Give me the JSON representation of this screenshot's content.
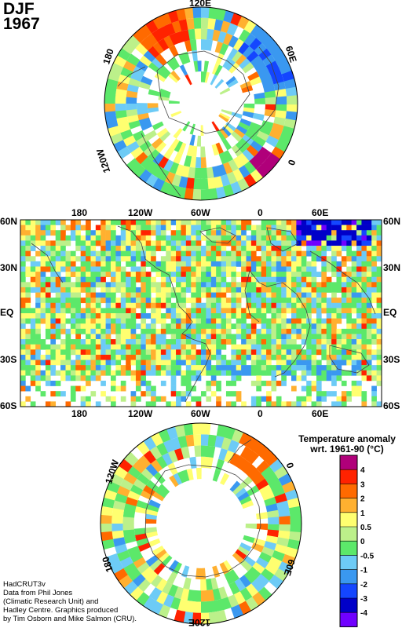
{
  "title": {
    "season": "DJF",
    "year": "1967"
  },
  "north_polar_map": {
    "longitude_labels": {
      "top": "120E",
      "right": "60E",
      "bottom_right": "0",
      "left": "180",
      "bottom_left": "120W"
    }
  },
  "global_map": {
    "top_longitude_labels": [
      "180",
      "120W",
      "60W",
      "0",
      "60E"
    ],
    "bottom_longitude_labels": [
      "180",
      "120W",
      "60W",
      "0",
      "60E"
    ],
    "left_latitude_labels": [
      "60N",
      "30N",
      "EQ",
      "30S",
      "60S"
    ],
    "right_latitude_labels": [
      "60N",
      "30N",
      "EQ",
      "30S",
      "60S"
    ]
  },
  "south_polar_map": {
    "longitude_labels": {
      "top_left": "120W",
      "top_right": "0",
      "bottom_left": "180",
      "bottom_right": "60E",
      "bottom": "120E"
    }
  },
  "legend": {
    "title_line1": "Temperature anomaly",
    "title_line2": "wrt. 1961-90  (°C)",
    "tick_labels": [
      "4",
      "3",
      "2",
      "1",
      "0.5",
      "0",
      "-0.5",
      "-1",
      "-2",
      "-3",
      "-4"
    ],
    "colors": [
      "#b0007a",
      "#ff2200",
      "#ff6a00",
      "#ffb030",
      "#ffff70",
      "#bcf08a",
      "#5ce86a",
      "#6dcbf6",
      "#3a98f0",
      "#1446ff",
      "#0000c8",
      "#7000ff"
    ]
  },
  "credits": [
    "HadCRUT3v",
    "Data from Phil Jones",
    "(Climatic Research Unit) and",
    "Hadley Centre.  Graphics produced",
    "by Tim Osborn and Mike Salmon (CRU)."
  ]
}
